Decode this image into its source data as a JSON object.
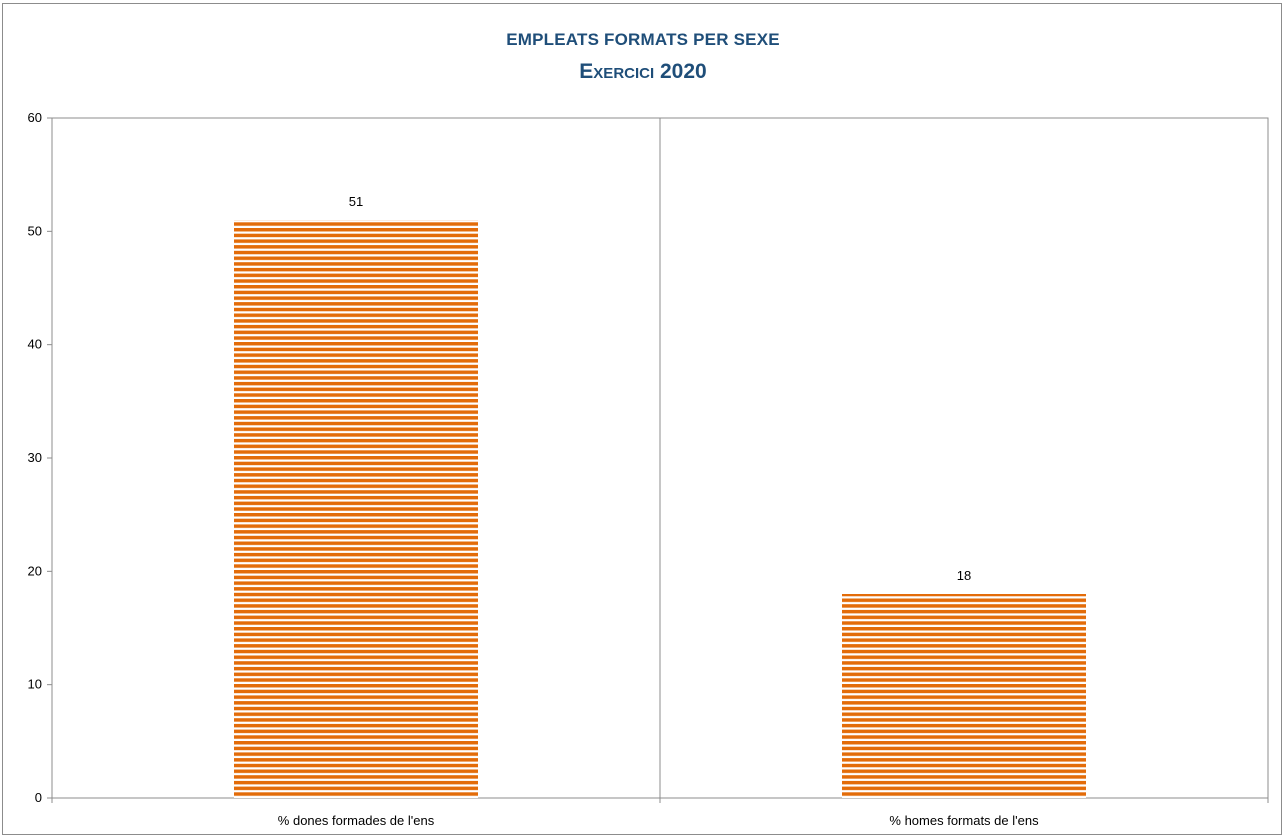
{
  "chart_data": {
    "type": "bar",
    "title": "EMPLEATS FORMATS PER SEXE",
    "subtitle": "Exercici 2020",
    "categories": [
      "% dones formades de l'ens",
      "% homes formats de l'ens"
    ],
    "values": [
      51,
      18
    ],
    "data_labels": [
      "51",
      "18"
    ],
    "y_ticks": [
      "0",
      "10",
      "20",
      "30",
      "40",
      "50",
      "60"
    ],
    "ylim": [
      0,
      60
    ],
    "grid": false,
    "legend": "none",
    "bar_color": "#e36c09",
    "bar_pattern": "horizontal-stripes",
    "title_color": "#1f4e79"
  }
}
